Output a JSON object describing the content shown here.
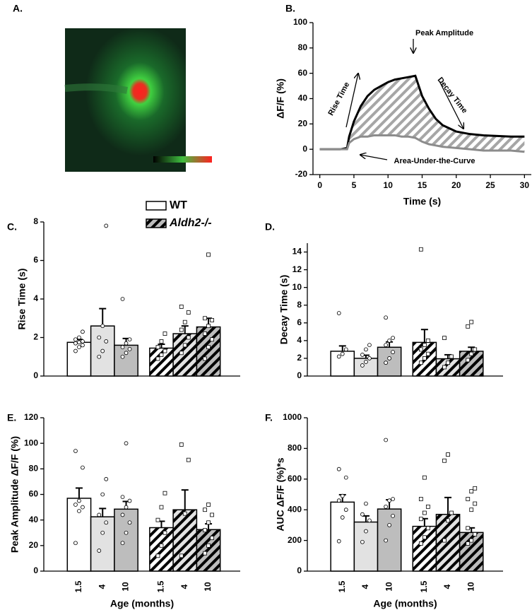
{
  "image_panel": {
    "label": "A."
  },
  "chart_data": [
    {
      "type": "line",
      "label": "B.",
      "ylabel": "ΔF/F (%)",
      "xlabel": "Time (s)",
      "x": [
        0,
        1,
        2,
        3,
        4,
        4.3,
        5,
        6,
        7,
        8,
        9,
        10,
        11,
        12,
        13,
        14,
        15,
        16,
        17,
        18,
        20,
        22,
        24,
        26,
        28,
        30
      ],
      "series": [
        {
          "color": "#000000",
          "values": [
            0,
            0,
            0,
            0,
            1,
            10,
            22,
            34,
            42,
            47,
            50,
            53,
            55,
            56,
            57,
            58,
            42,
            32,
            24,
            19,
            14,
            12,
            11,
            10.5,
            10,
            10
          ]
        },
        {
          "color": "#8c8c8c",
          "values": [
            0,
            0,
            0,
            0,
            0,
            5,
            8,
            10,
            10,
            11,
            11,
            11,
            11,
            10,
            10,
            9,
            6,
            4,
            3,
            2,
            1,
            0,
            -1,
            -1,
            -1,
            -2
          ]
        }
      ],
      "xlim": [
        -1,
        31
      ],
      "xticks": [
        0,
        5,
        10,
        15,
        20,
        25,
        30
      ],
      "ylim": [
        -20,
        100
      ],
      "yticks": [
        -20,
        0,
        20,
        40,
        60,
        80,
        100
      ],
      "annotations": [
        "Peak Amplitude",
        "Rise Time",
        "Decay Time",
        "Area-Under-the-Curve"
      ]
    },
    {
      "type": "bar",
      "label": "C.",
      "ylabel": "Rise Time (s)",
      "legend": true,
      "bar_colors": [
        "#ffffff",
        "#e2e2e2",
        "#bdbdbd"
      ],
      "ylim": [
        0,
        8
      ],
      "yticks": [
        0,
        2,
        4,
        6,
        8
      ],
      "series": [
        {
          "name": "WT",
          "hatch": false,
          "values": [
            1.75,
            2.6,
            1.6
          ],
          "errors": [
            0.15,
            0.9,
            0.35
          ],
          "points": [
            [
              1.3,
              1.5,
              1.6,
              1.7,
              1.75,
              1.8,
              1.9,
              2.0,
              2.3
            ],
            [
              1.0,
              1.3,
              1.8,
              2.0,
              2.6,
              7.8
            ],
            [
              1.0,
              1.2,
              1.4,
              1.5,
              1.7,
              1.9,
              4.0
            ]
          ]
        },
        {
          "name": "Aldh2-/-",
          "hatch": true,
          "values": [
            1.45,
            2.2,
            2.55
          ],
          "errors": [
            0.2,
            0.4,
            0.45
          ],
          "points": [
            [
              0.9,
              1.1,
              1.3,
              1.5,
              1.8,
              2.2
            ],
            [
              1.2,
              1.6,
              2.0,
              2.4,
              2.8,
              3.3,
              3.6
            ],
            [
              0.9,
              1.5,
              1.9,
              2.2,
              2.6,
              2.9,
              3.0,
              6.3
            ]
          ]
        }
      ]
    },
    {
      "type": "bar",
      "label": "D.",
      "ylabel": "Decay Time (s)",
      "bar_colors": [
        "#ffffff",
        "#e2e2e2",
        "#bdbdbd"
      ],
      "ylim": [
        0,
        15
      ],
      "yticks": [
        0,
        2,
        4,
        6,
        8,
        10,
        12,
        14
      ],
      "series": [
        {
          "name": "WT",
          "hatch": false,
          "values": [
            2.8,
            2.0,
            3.25
          ],
          "errors": [
            0.6,
            0.35,
            0.6
          ],
          "points": [
            [
              2.2,
              2.5,
              3.0,
              7.1
            ],
            [
              1.2,
              1.6,
              2.0,
              2.4,
              3.0,
              3.5
            ],
            [
              1.5,
              2.0,
              2.7,
              3.5,
              4.0,
              4.3,
              6.6
            ]
          ]
        },
        {
          "name": "Aldh2-/-",
          "hatch": true,
          "values": [
            3.8,
            1.95,
            2.8
          ],
          "errors": [
            1.45,
            0.45,
            0.45
          ],
          "points": [
            [
              1.5,
              2.0,
              2.5,
              3.0,
              3.5,
              4.0,
              14.3
            ],
            [
              1.0,
              1.5,
              2.2,
              4.3
            ],
            [
              1.8,
              2.5,
              3.0,
              5.6,
              6.1
            ]
          ]
        }
      ]
    },
    {
      "type": "bar",
      "label": "E.",
      "ylabel": "Peak Amplitude ΔF/F (%)",
      "xlabel": "Age (months)",
      "categories": [
        "1.5",
        "4",
        "10"
      ],
      "bar_colors": [
        "#ffffff",
        "#e2e2e2",
        "#bdbdbd"
      ],
      "ylim": [
        0,
        120
      ],
      "yticks": [
        0,
        20,
        40,
        60,
        80,
        100,
        120
      ],
      "series": [
        {
          "name": "WT",
          "hatch": false,
          "values": [
            57,
            42.5,
            48.5
          ],
          "errors": [
            8,
            6.5,
            6
          ],
          "points": [
            [
              22,
              47,
              50,
              52,
              55,
              81,
              94
            ],
            [
              16,
              30,
              38,
              44,
              60,
              72
            ],
            [
              22,
              30,
              38,
              44,
              50,
              55,
              58,
              100
            ]
          ]
        },
        {
          "name": "Aldh2-/-",
          "hatch": true,
          "values": [
            34,
            48,
            32.5
          ],
          "errors": [
            5,
            15.5,
            4.5
          ],
          "points": [
            [
              12,
              20,
              30,
              40,
              50,
              61
            ],
            [
              12,
              45,
              87,
              99
            ],
            [
              14,
              20,
              26,
              32,
              38,
              44,
              48,
              52
            ]
          ]
        }
      ]
    },
    {
      "type": "bar",
      "label": "F.",
      "ylabel": "AUC ΔF/F (%)*s",
      "xlabel": "Age (months)",
      "categories": [
        "1.5",
        "4",
        "10"
      ],
      "bar_colors": [
        "#ffffff",
        "#e2e2e2",
        "#bdbdbd"
      ],
      "ylim": [
        0,
        1000
      ],
      "yticks": [
        0,
        200,
        400,
        600,
        800,
        1000
      ],
      "series": [
        {
          "name": "WT",
          "hatch": false,
          "values": [
            450,
            320,
            405
          ],
          "errors": [
            48,
            40,
            60
          ],
          "points": [
            [
              195,
              350,
              400,
              460,
              490,
              610,
              665
            ],
            [
              190,
              260,
              330,
              370,
              440
            ],
            [
              200,
              300,
              360,
              420,
              460,
              470,
              855
            ]
          ]
        },
        {
          "name": "Aldh2-/-",
          "hatch": true,
          "values": [
            292,
            370,
            252
          ],
          "errors": [
            50,
            110,
            30
          ],
          "points": [
            [
              180,
              220,
              280,
              340,
              380,
              420,
              470,
              610
            ],
            [
              200,
              330,
              380,
              720,
              760
            ],
            [
              180,
              200,
              240,
              280,
              400,
              440,
              470,
              520,
              540
            ]
          ]
        }
      ]
    }
  ]
}
